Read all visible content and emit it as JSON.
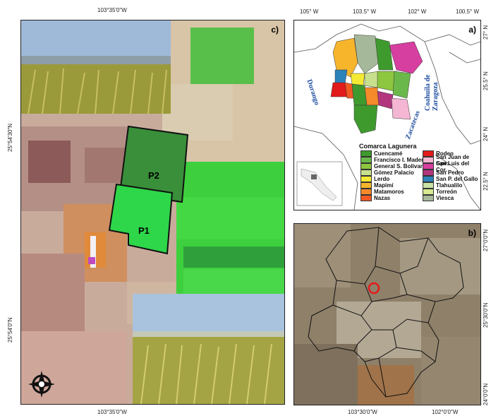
{
  "panel_c": {
    "label": "c)",
    "top_tick": "103°35'0\"W",
    "bottom_tick": "103°35'0\"W",
    "left_ticks": [
      "25°54'30\"N",
      "25°54'0\"N"
    ],
    "plots": [
      {
        "label": "P2"
      },
      {
        "label": "P1"
      }
    ]
  },
  "panel_a": {
    "label": "a)",
    "top_ticks": [
      "105° W",
      "103.5° W",
      "102° W",
      "100.5° W"
    ],
    "right_ticks": [
      "27° N",
      "25.5° N",
      "24° N",
      "22.5° N"
    ],
    "state_labels": [
      "Durango",
      "Zacatecas",
      "Coahuila de Zaragoza"
    ],
    "legend_title": "Comarca Lagunera",
    "legend": [
      {
        "name": "Cuencamé",
        "color": "#3f9a2e"
      },
      {
        "name": "Francisco I. Madero",
        "color": "#6bb84a"
      },
      {
        "name": "General S. Bolivar",
        "color": "#8dc63f"
      },
      {
        "name": "Gómez Palacio",
        "color": "#c8e08c"
      },
      {
        "name": "Lerdo",
        "color": "#f5ea33"
      },
      {
        "name": "Mapimí",
        "color": "#f7b52c"
      },
      {
        "name": "Matamoros",
        "color": "#f48a2a"
      },
      {
        "name": "Nazas",
        "color": "#f15a24"
      },
      {
        "name": "Rodeo",
        "color": "#e31a1c"
      },
      {
        "name": "San Juan de Gpe.",
        "color": "#f4b6d2"
      },
      {
        "name": "San Luis del Cor.",
        "color": "#d63fa0"
      },
      {
        "name": "San Pedro",
        "color": "#b2357e"
      },
      {
        "name": "San P. del Gallo",
        "color": "#2b83ba"
      },
      {
        "name": "Tlahualilo",
        "color": "#c9e3a6"
      },
      {
        "name": "Torreón",
        "color": "#d6e98f"
      },
      {
        "name": "Viesca",
        "color": "#a6b89a"
      }
    ]
  },
  "panel_b": {
    "label": "b)",
    "bottom_ticks": [
      "103°30'0\"W",
      "102°0'0\"W"
    ],
    "right_ticks": [
      "27°0'0\"N",
      "25°30'0\"N",
      "24°0'0\"N"
    ]
  }
}
